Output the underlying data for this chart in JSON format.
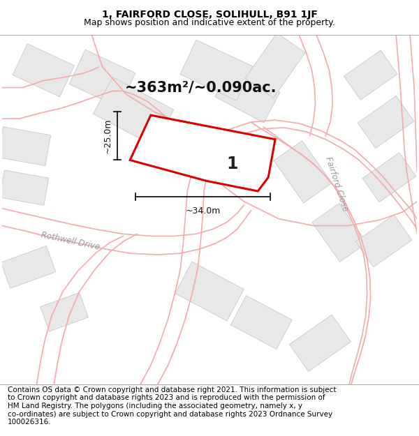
{
  "title_line1": "1, FAIRFORD CLOSE, SOLIHULL, B91 1JF",
  "title_line2": "Map shows position and indicative extent of the property.",
  "area_text": "~363m²/~0.090ac.",
  "footer_text": "Contains OS data © Crown copyright and database right 2021. This information is subject\nto Crown copyright and database rights 2023 and is reproduced with the permission of\nHM Land Registry. The polygons (including the associated geometry, namely x, y\nco-ordinates) are subject to Crown copyright and database rights 2023 Ordnance Survey\n100026316.",
  "label_1": "1",
  "dim_width": "~34.0m",
  "dim_height": "~25.0m",
  "street_rothwell": "Rothwell Drive",
  "street_fairford": "Fairford Close",
  "map_bg": "#ffffff",
  "road_color": "#f5aaaa",
  "building_fill": "#e8e8e8",
  "building_edge": "#c8c8c8",
  "property_fill": "#ffffff",
  "property_edge": "#dd0000",
  "title_fontsize": 10,
  "subtitle_fontsize": 9,
  "footer_fontsize": 7.5,
  "area_fontsize": 15,
  "label_fontsize": 17
}
